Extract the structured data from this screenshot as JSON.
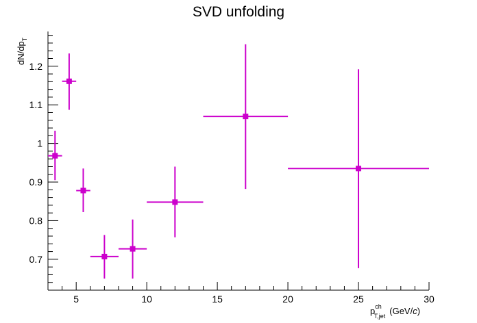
{
  "chart_data": {
    "type": "scatter",
    "title": "SVD unfolding",
    "xlabel": {
      "main": "p",
      "superscript": "ch",
      "subscript": "T,jet",
      "unit_prefix": "(GeV/",
      "unit_italic": "c",
      "unit_suffix": ")"
    },
    "ylabel": {
      "main": "dN/dp",
      "subscript": "T"
    },
    "xlim": [
      3,
      30
    ],
    "ylim": [
      0.62,
      1.29
    ],
    "x_ticks": [
      5,
      10,
      15,
      20,
      25,
      30
    ],
    "x_tick_labels": [
      "5",
      "10",
      "15",
      "20",
      "25",
      "30"
    ],
    "y_ticks": [
      0.7,
      0.8,
      0.9,
      1.0,
      1.1,
      1.2
    ],
    "y_tick_labels": [
      "0.7",
      "0.8",
      "0.9",
      "1",
      "1.1",
      "1.2"
    ],
    "grid": false,
    "legend": "none",
    "marker_color": "#cc00cc",
    "marker": "square",
    "series": [
      {
        "points": [
          {
            "x": 3.5,
            "x_low": 3,
            "x_high": 4,
            "y": 0.968,
            "y_low": 0.905,
            "y_high": 1.033
          },
          {
            "x": 4.5,
            "x_low": 4,
            "x_high": 5,
            "y": 1.161,
            "y_low": 1.087,
            "y_high": 1.233
          },
          {
            "x": 5.5,
            "x_low": 5,
            "x_high": 6,
            "y": 0.878,
            "y_low": 0.822,
            "y_high": 0.935
          },
          {
            "x": 7,
            "x_low": 6,
            "x_high": 8,
            "y": 0.707,
            "y_low": 0.65,
            "y_high": 0.763
          },
          {
            "x": 9,
            "x_low": 8,
            "x_high": 10,
            "y": 0.727,
            "y_low": 0.65,
            "y_high": 0.803
          },
          {
            "x": 12,
            "x_low": 10,
            "x_high": 14,
            "y": 0.848,
            "y_low": 0.757,
            "y_high": 0.94
          },
          {
            "x": 17,
            "x_low": 14,
            "x_high": 20,
            "y": 1.07,
            "y_low": 0.882,
            "y_high": 1.257
          },
          {
            "x": 25,
            "x_low": 20,
            "x_high": 30,
            "y": 0.935,
            "y_low": 0.677,
            "y_high": 1.192
          }
        ]
      }
    ]
  }
}
